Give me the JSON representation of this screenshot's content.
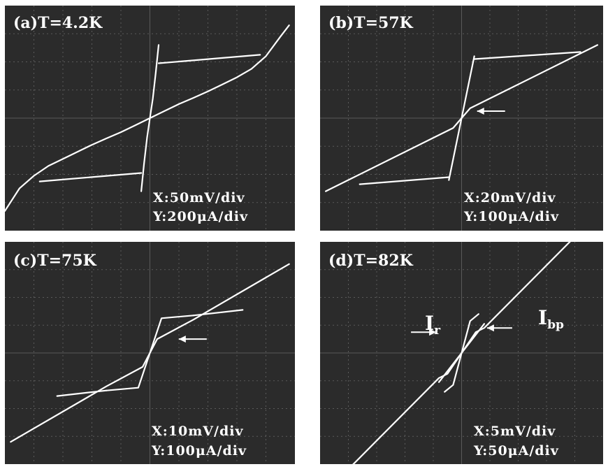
{
  "colors": {
    "background": "#2b2b2b",
    "grid": "#5a5a5a",
    "trace": "#ffffff",
    "page": "#ffffff"
  },
  "chart_data": [
    {
      "type": "line",
      "title": "(a)T=4.2K",
      "scale_x": "X:50mV/div",
      "scale_y": "Y:200μA/div",
      "grid": true,
      "x_units": "div",
      "y_units": "div",
      "xlim": [
        -5,
        5
      ],
      "ylim": [
        -4,
        4
      ],
      "series": [
        {
          "x": [
            -5.0,
            -4.5,
            -4.0,
            -3.5,
            -3.0,
            -2.5,
            -2.0,
            -1.5,
            -1.0,
            -0.5,
            0.0,
            0.5,
            1.0,
            1.5,
            2.0,
            2.5,
            3.0,
            3.5,
            4.0,
            4.5,
            4.8
          ],
          "y": [
            -3.3,
            -2.5,
            -2.05,
            -1.7,
            -1.45,
            -1.2,
            -0.95,
            -0.72,
            -0.5,
            -0.25,
            0.0,
            0.25,
            0.5,
            0.72,
            0.95,
            1.2,
            1.45,
            1.75,
            2.2,
            2.9,
            3.3
          ]
        },
        {
          "x": [
            -0.3,
            -0.2,
            -0.1,
            0.0,
            0.1,
            0.2,
            0.3
          ],
          "y": [
            -2.6,
            -1.6,
            -0.7,
            0.0,
            0.7,
            1.6,
            2.6
          ]
        },
        {
          "x": [
            -0.3,
            -3.8
          ],
          "y": [
            -1.95,
            -2.25
          ]
        },
        {
          "x": [
            0.3,
            3.8
          ],
          "y": [
            1.95,
            2.25
          ]
        }
      ]
    },
    {
      "type": "line",
      "title": "(b)T=57K",
      "scale_x": "X:20mV/div",
      "scale_y": "Y:100μA/div",
      "grid": true,
      "x_units": "div",
      "y_units": "div",
      "xlim": [
        -5,
        5
      ],
      "ylim": [
        -4,
        4
      ],
      "series": [
        {
          "x": [
            -4.8,
            -0.3,
            0.0,
            0.3,
            4.8
          ],
          "y": [
            -2.6,
            -0.35,
            0.0,
            0.35,
            2.6
          ]
        },
        {
          "x": [
            -0.45,
            0.45
          ],
          "y": [
            -2.2,
            2.2
          ]
        },
        {
          "x": [
            0.45,
            4.2
          ],
          "y": [
            2.1,
            2.35
          ]
        },
        {
          "x": [
            -0.45,
            -3.6
          ],
          "y": [
            -2.1,
            -2.35
          ]
        }
      ],
      "annotations": [
        {
          "type": "arrow",
          "x": 0.45,
          "y": 0.25
        }
      ]
    },
    {
      "type": "line",
      "title": "(c)T=75K",
      "scale_x": "X:10mV/div",
      "scale_y": "Y:100μA/div",
      "grid": true,
      "x_units": "div",
      "y_units": "div",
      "xlim": [
        -5,
        5
      ],
      "ylim": [
        -4,
        4
      ],
      "series": [
        {
          "x": [
            -4.8,
            -1.5,
            -0.25,
            0.25,
            1.5,
            4.8
          ],
          "y": [
            -3.2,
            -1.2,
            -0.5,
            0.5,
            1.2,
            3.2
          ]
        },
        {
          "x": [
            -1.5,
            -0.4,
            0.4,
            1.5
          ],
          "y": [
            -1.35,
            -1.25,
            1.25,
            1.35
          ]
        },
        {
          "x": [
            1.5,
            3.2
          ],
          "y": [
            1.35,
            1.55
          ]
        },
        {
          "x": [
            -1.5,
            -3.2
          ],
          "y": [
            -1.35,
            -1.55
          ]
        }
      ],
      "annotations": [
        {
          "type": "arrow",
          "x": 0.9,
          "y": 0.5
        }
      ]
    },
    {
      "type": "line",
      "title": "(d)T=82K",
      "scale_x": "X:5mV/div",
      "scale_y": "Y:50μA/div",
      "grid": true,
      "x_units": "div",
      "y_units": "div",
      "xlim": [
        -5,
        5
      ],
      "ylim": [
        -4,
        4
      ],
      "series": [
        {
          "x": [
            -4.8,
            -0.8,
            -0.5,
            0.5,
            0.8,
            4.8
          ],
          "y": [
            -5.0,
            -0.9,
            -0.75,
            0.75,
            0.9,
            5.0
          ]
        },
        {
          "x": [
            -0.8,
            0.8
          ],
          "y": [
            -1.05,
            1.05
          ]
        },
        {
          "x": [
            -0.6,
            -0.3,
            0.3,
            0.6
          ],
          "y": [
            -1.4,
            -1.15,
            1.15,
            1.4
          ]
        }
      ],
      "annotations": [
        {
          "label": "I",
          "sub": "r",
          "x": -0.8,
          "y": 0.75
        },
        {
          "label": "I",
          "sub": "bp",
          "x": 0.8,
          "y": 0.9
        }
      ]
    }
  ]
}
